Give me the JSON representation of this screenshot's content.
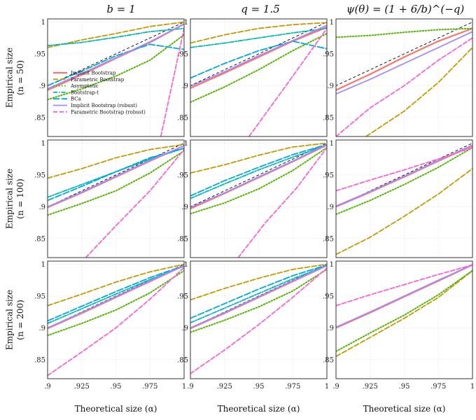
{
  "figure": {
    "col_titles": [
      "b = 1",
      "q = 1.5",
      "ψ(θ) = (1 + 6/b)^(−q)"
    ],
    "row_labels": [
      [
        "Empirical size",
        "(n = 50)"
      ],
      [
        "Empirical size",
        "(n = 100)"
      ],
      [
        "Empirical size",
        "(n = 200)"
      ]
    ],
    "xlabel": "Theoretical size (α)",
    "x_ticks": [
      0.9,
      0.925,
      0.95,
      0.975,
      1.0
    ],
    "x_tick_labels": [
      ".9",
      ".925",
      ".95",
      ".975",
      "1"
    ],
    "y_ticks": [
      0.85,
      0.9,
      0.95,
      1.0
    ],
    "y_tick_labels": [
      ".85",
      ".9",
      ".95",
      "1"
    ],
    "xlim": [
      0.9,
      1.0
    ],
    "ylim": [
      0.82,
      1.005
    ],
    "legend_placement": "inside top-left panel, lower-left",
    "grid": true
  },
  "series_styles": [
    {
      "name": "Implicit Bootstrap",
      "color": "#F8766D",
      "dash": "solid",
      "width": 2.2
    },
    {
      "name": "Parametric Bootstrap",
      "color": "#C49A00",
      "dash": "7 3",
      "width": 1.8
    },
    {
      "name": "Asymptotic",
      "color": "#53B400",
      "dash": "1.5 2.5",
      "width": 2
    },
    {
      "name": "Bootstrap-t",
      "color": "#00B6B6",
      "dash": "6 2 1.5 2",
      "width": 1.8
    },
    {
      "name": "BCa",
      "color": "#00A9DA",
      "dash": "9 3",
      "width": 1.8
    },
    {
      "name": "Implicit Bootstrap (robust)",
      "color": "#A58AFF",
      "dash": "solid",
      "width": 1.8
    },
    {
      "name": "Parametric Bootstrap (robust)",
      "color": "#FB61D7",
      "dash": "6 3",
      "width": 1.8
    }
  ],
  "chart_data": [
    {
      "type": "line",
      "panel": "row1-col1",
      "x": [
        0.9,
        0.925,
        0.95,
        0.975,
        1.0
      ],
      "xlim": [
        0.9,
        1.0
      ],
      "ylim": [
        0.82,
        1.005
      ],
      "series": [
        {
          "name": "Implicit Bootstrap",
          "values": [
            0.893,
            0.917,
            0.943,
            0.968,
            0.997
          ]
        },
        {
          "name": "Parametric Bootstrap",
          "values": [
            0.96,
            0.972,
            0.982,
            0.993,
            1.0
          ]
        },
        {
          "name": "Asymptotic",
          "values": [
            0.878,
            0.895,
            0.915,
            0.94,
            0.98
          ]
        },
        {
          "name": "Bootstrap-t",
          "values": [
            0.963,
            0.968,
            0.976,
            0.985,
            0.99
          ]
        },
        {
          "name": "BCa",
          "values": [
            0.9,
            0.923,
            0.947,
            0.965,
            0.957
          ]
        },
        {
          "name": "Implicit Bootstrap (robust)",
          "values": [
            0.895,
            0.919,
            0.944,
            0.969,
            0.997
          ]
        },
        {
          "name": "Parametric Bootstrap (robust)",
          "values": [
            null,
            null,
            null,
            0.82,
            0.99
          ]
        }
      ],
      "extra_x": {
        "Parametric Bootstrap (robust)": [
          0.983,
          1.0
        ]
      }
    },
    {
      "type": "line",
      "panel": "row1-col2",
      "x": [
        0.9,
        0.925,
        0.95,
        0.975,
        1.0
      ],
      "xlim": [
        0.9,
        1.0
      ],
      "ylim": [
        0.82,
        1.005
      ],
      "series": [
        {
          "name": "Implicit Bootstrap",
          "values": [
            0.896,
            0.92,
            0.945,
            0.97,
            0.992
          ]
        },
        {
          "name": "Parametric Bootstrap",
          "values": [
            0.967,
            0.98,
            0.99,
            0.996,
            0.999
          ]
        },
        {
          "name": "Asymptotic",
          "values": [
            0.874,
            0.898,
            0.925,
            0.955,
            0.982
          ]
        },
        {
          "name": "Bootstrap-t",
          "values": [
            0.96,
            0.967,
            0.975,
            0.983,
            0.99
          ]
        },
        {
          "name": "BCa",
          "values": [
            0.912,
            0.935,
            0.955,
            0.97,
            0.958
          ]
        },
        {
          "name": "Implicit Bootstrap (robust)",
          "values": [
            0.899,
            0.922,
            0.947,
            0.971,
            0.995
          ]
        },
        {
          "name": "Parametric Bootstrap (robust)",
          "values": [
            null,
            null,
            0.82,
            0.9,
            0.99
          ]
        }
      ],
      "extra_x": {
        "Parametric Bootstrap (robust)": [
          0.943,
          0.97,
          1.0
        ]
      }
    },
    {
      "type": "line",
      "panel": "row1-col3",
      "x": [
        0.9,
        0.925,
        0.95,
        0.975,
        1.0
      ],
      "xlim": [
        0.9,
        1.0
      ],
      "ylim": [
        0.82,
        1.005
      ],
      "series": [
        {
          "name": "Implicit Bootstrap",
          "values": [
            0.893,
            0.918,
            0.945,
            0.97,
            0.99
          ]
        },
        {
          "name": "Parametric Bootstrap",
          "values": [
            null,
            0.82,
            0.86,
            0.905,
            0.96
          ]
        },
        {
          "name": "Asymptotic",
          "values": [
            0.976,
            0.979,
            0.984,
            0.988,
            0.99
          ]
        },
        {
          "name": "Implicit Bootstrap (robust)",
          "values": [
            0.887,
            0.91,
            0.935,
            0.96,
            0.985
          ]
        },
        {
          "name": "Parametric Bootstrap (robust)",
          "values": [
            0.82,
            0.865,
            0.9,
            0.94,
            0.975
          ]
        }
      ],
      "extra_x": {
        "Parametric Bootstrap": [
          0.922,
          0.95,
          0.975,
          1.0
        ],
        "Parametric Bootstrap (robust)": [
          0.9,
          0.925,
          0.95,
          0.975,
          1.0
        ]
      }
    },
    {
      "type": "line",
      "panel": "row2-col1",
      "x": [
        0.9,
        0.925,
        0.95,
        0.975,
        1.0
      ],
      "xlim": [
        0.9,
        1.0
      ],
      "ylim": [
        0.82,
        1.005
      ],
      "series": [
        {
          "name": "Implicit Bootstrap",
          "values": [
            0.899,
            0.922,
            0.947,
            0.972,
            0.996
          ]
        },
        {
          "name": "Parametric Bootstrap",
          "values": [
            0.945,
            0.96,
            0.977,
            0.99,
            0.998
          ]
        },
        {
          "name": "Asymptotic",
          "values": [
            0.887,
            0.905,
            0.925,
            0.953,
            0.988
          ]
        },
        {
          "name": "Bootstrap-t",
          "values": [
            0.915,
            0.935,
            0.955,
            0.975,
            0.992
          ]
        },
        {
          "name": "BCa",
          "values": [
            0.91,
            0.932,
            0.955,
            0.977,
            0.992
          ]
        },
        {
          "name": "Implicit Bootstrap (robust)",
          "values": [
            0.9,
            0.923,
            0.948,
            0.973,
            0.996
          ]
        },
        {
          "name": "Parametric Bootstrap (robust)",
          "values": [
            null,
            0.82,
            0.87,
            0.925,
            0.99
          ]
        }
      ],
      "extra_x": {
        "Parametric Bootstrap (robust)": [
          0.928,
          0.95,
          0.975,
          1.0
        ]
      }
    },
    {
      "type": "line",
      "panel": "row2-col2",
      "x": [
        0.9,
        0.925,
        0.95,
        0.975,
        1.0
      ],
      "xlim": [
        0.9,
        1.0
      ],
      "ylim": [
        0.82,
        1.005
      ],
      "series": [
        {
          "name": "Implicit Bootstrap",
          "values": [
            0.897,
            0.921,
            0.946,
            0.971,
            0.997
          ]
        },
        {
          "name": "Parametric Bootstrap",
          "values": [
            0.953,
            0.966,
            0.981,
            0.994,
            1.0
          ]
        },
        {
          "name": "Asymptotic",
          "values": [
            0.889,
            0.906,
            0.928,
            0.957,
            0.993
          ]
        },
        {
          "name": "Bootstrap-t",
          "values": [
            0.913,
            0.936,
            0.958,
            0.978,
            0.997
          ]
        },
        {
          "name": "BCa",
          "values": [
            0.917,
            0.941,
            0.962,
            0.982,
            0.998
          ]
        },
        {
          "name": "Implicit Bootstrap (robust)",
          "values": [
            0.899,
            0.922,
            0.947,
            0.972,
            0.998
          ]
        },
        {
          "name": "Parametric Bootstrap (robust)",
          "values": [
            null,
            0.82,
            0.875,
            0.93,
            0.993
          ]
        }
      ],
      "extra_x": {
        "Parametric Bootstrap (robust)": [
          0.935,
          0.955,
          0.978,
          1.0
        ]
      }
    },
    {
      "type": "line",
      "panel": "row2-col3",
      "x": [
        0.9,
        0.925,
        0.95,
        0.975,
        1.0
      ],
      "xlim": [
        0.9,
        1.0
      ],
      "ylim": [
        0.82,
        1.005
      ],
      "series": [
        {
          "name": "Implicit Bootstrap",
          "values": [
            0.9,
            0.923,
            0.947,
            0.972,
            0.996
          ]
        },
        {
          "name": "Parametric Bootstrap",
          "values": [
            0.825,
            0.852,
            0.885,
            0.92,
            0.96
          ]
        },
        {
          "name": "Asymptotic",
          "values": [
            0.888,
            0.91,
            0.935,
            0.962,
            0.993
          ]
        },
        {
          "name": "Implicit Bootstrap (robust)",
          "values": [
            0.901,
            0.924,
            0.948,
            0.973,
            0.997
          ]
        },
        {
          "name": "Parametric Bootstrap (robust)",
          "values": [
            0.925,
            0.942,
            0.958,
            0.975,
            0.993
          ]
        }
      ]
    },
    {
      "type": "line",
      "panel": "row3-col1",
      "x": [
        0.9,
        0.925,
        0.95,
        0.975,
        1.0
      ],
      "xlim": [
        0.9,
        1.0
      ],
      "ylim": [
        0.82,
        1.005
      ],
      "series": [
        {
          "name": "Implicit Bootstrap",
          "values": [
            0.899,
            0.923,
            0.948,
            0.973,
            0.998
          ]
        },
        {
          "name": "Parametric Bootstrap",
          "values": [
            0.935,
            0.953,
            0.972,
            0.988,
            1.0
          ]
        },
        {
          "name": "Asymptotic",
          "values": [
            0.888,
            0.907,
            0.928,
            0.955,
            0.99
          ]
        },
        {
          "name": "Bootstrap-t",
          "values": [
            0.907,
            0.93,
            0.953,
            0.976,
            0.997
          ]
        },
        {
          "name": "BCa",
          "values": [
            0.911,
            0.934,
            0.957,
            0.979,
            0.998
          ]
        },
        {
          "name": "Implicit Bootstrap (robust)",
          "values": [
            0.9,
            0.924,
            0.949,
            0.974,
            0.998
          ]
        },
        {
          "name": "Parametric Bootstrap (robust)",
          "values": [
            0.825,
            0.862,
            0.9,
            0.945,
            0.995
          ]
        }
      ]
    },
    {
      "type": "line",
      "panel": "row3-col2",
      "x": [
        0.9,
        0.925,
        0.95,
        0.975,
        1.0
      ],
      "xlim": [
        0.9,
        1.0
      ],
      "ylim": [
        0.82,
        1.005
      ],
      "series": [
        {
          "name": "Implicit Bootstrap",
          "values": [
            0.899,
            0.923,
            0.948,
            0.973,
            0.998
          ]
        },
        {
          "name": "Parametric Bootstrap",
          "values": [
            0.944,
            0.962,
            0.978,
            0.992,
            1.0
          ]
        },
        {
          "name": "Asymptotic",
          "values": [
            0.893,
            0.912,
            0.933,
            0.958,
            0.992
          ]
        },
        {
          "name": "Bootstrap-t",
          "values": [
            0.908,
            0.931,
            0.954,
            0.977,
            0.998
          ]
        },
        {
          "name": "BCa",
          "values": [
            0.915,
            0.938,
            0.961,
            0.982,
            0.999
          ]
        },
        {
          "name": "Implicit Bootstrap (robust)",
          "values": [
            0.9,
            0.924,
            0.949,
            0.974,
            0.998
          ]
        },
        {
          "name": "Parametric Bootstrap (robust)",
          "values": [
            0.828,
            0.865,
            0.905,
            0.948,
            0.994
          ]
        }
      ]
    },
    {
      "type": "line",
      "panel": "row3-col3",
      "x": [
        0.9,
        0.925,
        0.95,
        0.975,
        1.0
      ],
      "xlim": [
        0.9,
        1.0
      ],
      "ylim": [
        0.82,
        1.005
      ],
      "series": [
        {
          "name": "Implicit Bootstrap",
          "values": [
            0.9,
            0.924,
            0.949,
            0.974,
            0.999
          ]
        },
        {
          "name": "Parametric Bootstrap",
          "values": [
            0.855,
            0.885,
            0.915,
            0.948,
            0.99
          ]
        },
        {
          "name": "Asymptotic",
          "values": [
            0.863,
            0.892,
            0.92,
            0.952,
            0.99
          ]
        },
        {
          "name": "Implicit Bootstrap (robust)",
          "values": [
            0.901,
            0.925,
            0.95,
            0.975,
            0.999
          ]
        },
        {
          "name": "Parametric Bootstrap (robust)",
          "values": [
            0.935,
            0.952,
            0.968,
            0.984,
            0.999
          ]
        }
      ]
    }
  ]
}
